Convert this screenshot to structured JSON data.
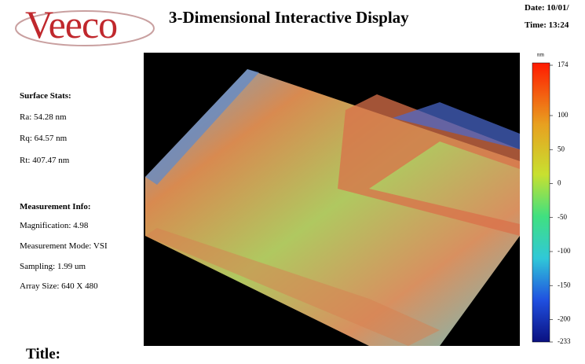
{
  "header": {
    "logo": "Veeco",
    "title": "3-Dimensional Interactive Display",
    "date": "Date: 10/01/",
    "time": "Time: 13:24"
  },
  "surface_stats": {
    "heading": "Surface Stats:",
    "items": [
      "Ra: 54.28 nm",
      "Rq: 64.57 nm",
      "Rt: 407.47 nm"
    ]
  },
  "measurement_info": {
    "heading": "Measurement Info:",
    "items": [
      "Magnification: 4.98",
      "Measurement Mode: VSI",
      "Sampling: 1.99 um",
      "Array Size: 640 X 480"
    ]
  },
  "colorbar": {
    "unit": "nm",
    "lim": [
      -233,
      174
    ],
    "ticks": [
      174,
      100,
      50,
      0,
      -50,
      -100,
      -150,
      -200,
      -233
    ]
  },
  "footer": {
    "title_label": "Title:"
  }
}
